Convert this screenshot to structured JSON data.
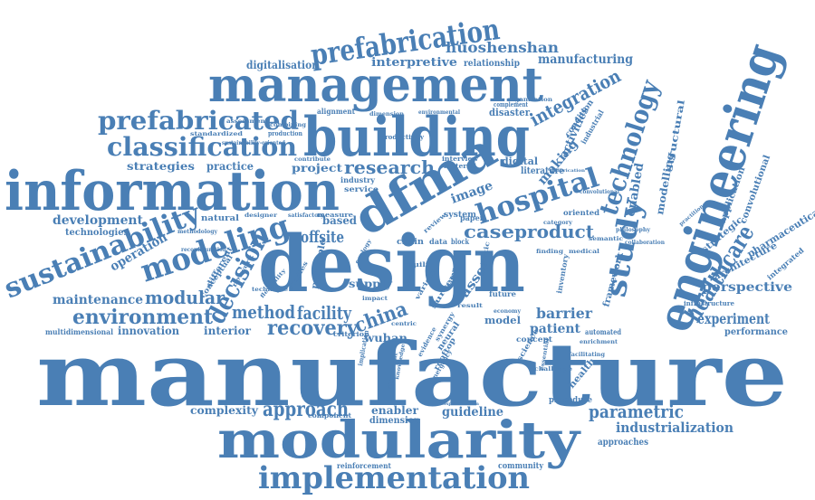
{
  "color": "#4a7fb5",
  "words": [
    "manufacture",
    "design",
    "modularity",
    "building",
    "information",
    "management",
    "engineering",
    "implementation",
    "dfma",
    "prefabrication",
    "prefabricated",
    "classification",
    "sustainability",
    "modeling",
    "study",
    "technology",
    "hospital",
    "healthcare",
    "decision",
    "modular",
    "environment",
    "method",
    "facility",
    "recovery",
    "china",
    "approach",
    "parametric",
    "industrialization",
    "research",
    "case",
    "product",
    "integration",
    "huoshenshan",
    "interpretive",
    "relationship",
    "digitalisation",
    "development",
    "technologies",
    "operation",
    "maintenance",
    "strategies",
    "practice",
    "project",
    "offsite",
    "based",
    "experiment",
    "perspective",
    "performance",
    "barrier",
    "patient",
    "guideline",
    "complexity",
    "enabler",
    "dimension",
    "reinforcement",
    "community",
    "approaches",
    "innovation",
    "interior",
    "multidimensional",
    "wuhan",
    "making",
    "activities",
    "enabled",
    "modelling",
    "structural",
    "image",
    "digital",
    "asset",
    "framework",
    "strategic",
    "application",
    "convolutional",
    "pharmaceutical",
    "architecture",
    "integrated",
    "model",
    "supply",
    "natural",
    "conceptual",
    "different",
    "principle",
    "chain",
    "data",
    "block",
    "literature",
    "industry",
    "service",
    "disaster",
    "alignment",
    "condition",
    "industrial",
    "oriented",
    "concept",
    "inventory",
    "automated",
    "health",
    "science",
    "future",
    "procedure",
    "component",
    "criterion",
    "neural",
    "network",
    "productivity",
    "production",
    "sustainability-oriented",
    "complement",
    "facilitating",
    "evidence",
    "semantic",
    "medical",
    "finding",
    "category",
    "paper",
    "review",
    "system",
    "material",
    "interview",
    "measure",
    "satisfactory",
    "designer",
    "logistic",
    "assessment",
    "organization",
    "environmental",
    "dimension",
    "combining",
    "standardized",
    "contribute",
    "albedo",
    "built",
    "ecology",
    "synergy",
    "rooftop",
    "emergency",
    "challenge",
    "enrichment",
    "philosophy",
    "collaboration",
    "infrastructure",
    "practitioner",
    "fabrication",
    "convolutional",
    "methodology",
    "reconfiguration",
    "flexibility",
    "hospitalization",
    "implication",
    "knowledge",
    "significant",
    "essential",
    "centric",
    "variety",
    "survey",
    "result",
    "support",
    "impact",
    "technique",
    "economy",
    "studies",
    "manufacturing"
  ]
}
